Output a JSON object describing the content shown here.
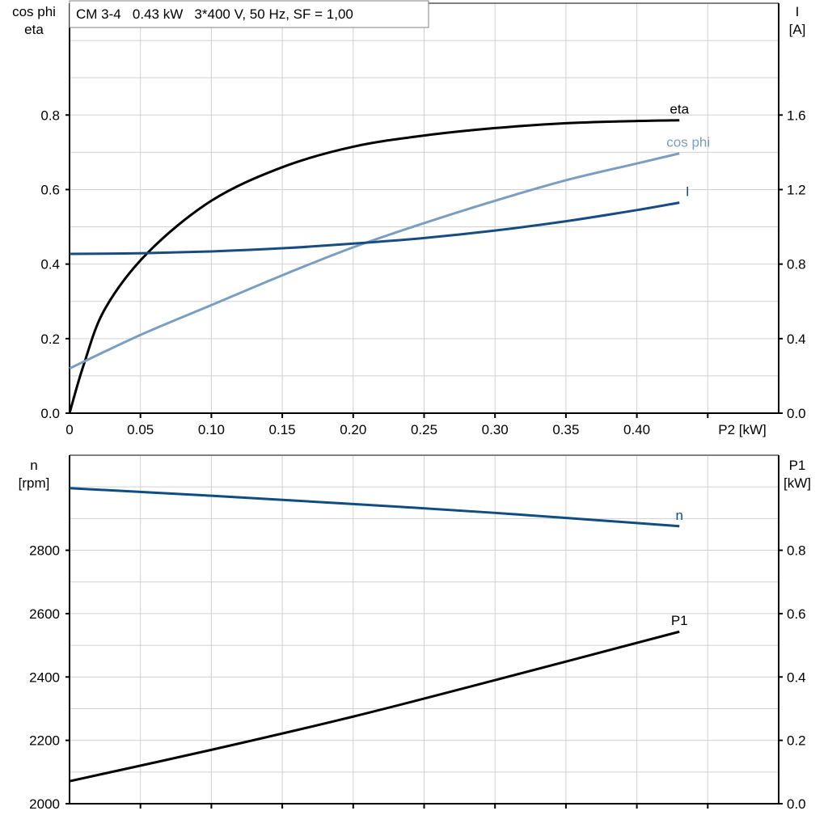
{
  "chart_data": [
    {
      "type": "line",
      "title": "CM 3-4   0.43 kW   3*400 V, 50 Hz, SF = 1,00",
      "xlabel": "P2 [kW]",
      "ylabel_left": [
        "cos phi",
        "eta"
      ],
      "ylabel_right": [
        "I",
        "[A]"
      ],
      "xlim": [
        0,
        0.5
      ],
      "ylim_left": [
        0,
        1.1
      ],
      "ylim_right": [
        0,
        2.2
      ],
      "x_ticks": [
        "0",
        "0.05",
        "0.10",
        "0.15",
        "0.20",
        "0.25",
        "0.30",
        "0.35",
        "0.40"
      ],
      "y_ticks_left": [
        "0.0",
        "0.2",
        "0.4",
        "0.6",
        "0.8"
      ],
      "y_ticks_right": [
        "0.0",
        "0.4",
        "0.8",
        "1.2",
        "1.6"
      ],
      "grid": true,
      "series": [
        {
          "name": "eta",
          "axis": "left",
          "color": "#000000",
          "x": [
            0,
            0.01,
            0.025,
            0.055,
            0.1,
            0.15,
            0.2,
            0.25,
            0.3,
            0.35,
            0.4,
            0.43
          ],
          "y": [
            0,
            0.13,
            0.28,
            0.43,
            0.57,
            0.66,
            0.715,
            0.745,
            0.765,
            0.778,
            0.784,
            0.786
          ]
        },
        {
          "name": "cos phi",
          "axis": "left",
          "color": "#7b9ec0",
          "x": [
            0,
            0.05,
            0.1,
            0.15,
            0.2,
            0.25,
            0.3,
            0.35,
            0.4,
            0.43
          ],
          "y": [
            0.12,
            0.21,
            0.29,
            0.37,
            0.445,
            0.51,
            0.57,
            0.625,
            0.67,
            0.697
          ]
        },
        {
          "name": "I",
          "axis": "right",
          "color": "#174c82",
          "x": [
            0,
            0.05,
            0.1,
            0.15,
            0.2,
            0.25,
            0.3,
            0.35,
            0.4,
            0.43
          ],
          "y": [
            0.855,
            0.858,
            0.868,
            0.885,
            0.91,
            0.94,
            0.98,
            1.03,
            1.09,
            1.13
          ]
        }
      ]
    },
    {
      "type": "line",
      "xlim": [
        0,
        0.5
      ],
      "ylabel_left": [
        "n",
        "[rpm]"
      ],
      "ylabel_right": [
        "P1",
        "[kW]"
      ],
      "ylim_left": [
        2000,
        3100
      ],
      "ylim_right": [
        0,
        1.1
      ],
      "y_ticks_left": [
        "2000",
        "2200",
        "2400",
        "2600",
        "2800"
      ],
      "y_ticks_right": [
        "0.0",
        "0.2",
        "0.4",
        "0.6",
        "0.8"
      ],
      "grid": true,
      "series": [
        {
          "name": "n",
          "axis": "left",
          "color": "#0f4c81",
          "x": [
            0,
            0.1,
            0.2,
            0.3,
            0.43
          ],
          "y": [
            2996,
            2972,
            2946,
            2918,
            2876
          ]
        },
        {
          "name": "P1",
          "axis": "right",
          "color": "#000000",
          "x": [
            0,
            0.1,
            0.2,
            0.3,
            0.43
          ],
          "y": [
            0.071,
            0.17,
            0.275,
            0.39,
            0.543
          ]
        }
      ]
    }
  ]
}
